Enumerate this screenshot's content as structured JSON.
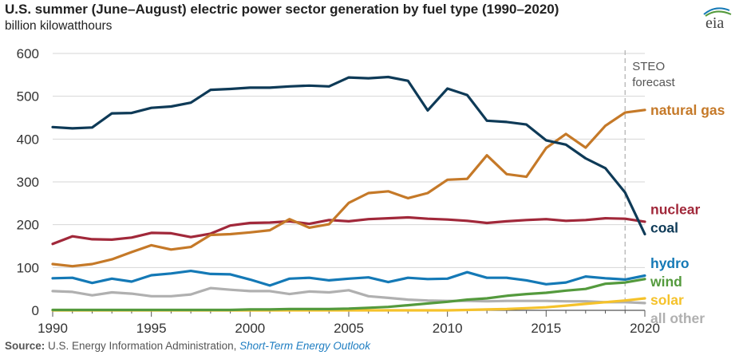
{
  "title": "U.S. summer (June–August) electric power sector generation by fuel type (1990–2020)",
  "subtitle": "billion kilowatthours",
  "logo_text": "eia",
  "source": {
    "label": "Source:",
    "text": " U.S. Energy Information Administration, ",
    "link": "Short-Term Energy Outlook"
  },
  "forecast_label": [
    "STEO",
    "forecast"
  ],
  "chart_data": {
    "type": "line",
    "xlim": [
      1990,
      2020
    ],
    "ylim": [
      0,
      600
    ],
    "x_ticks": [
      1990,
      1995,
      2000,
      2005,
      2010,
      2015,
      2020
    ],
    "y_ticks": [
      0,
      100,
      200,
      300,
      400,
      500,
      600
    ],
    "forecast_start": 2019,
    "grid": "horizontal",
    "x": [
      1990,
      1991,
      1992,
      1993,
      1994,
      1995,
      1996,
      1997,
      1998,
      1999,
      2000,
      2001,
      2002,
      2003,
      2004,
      2005,
      2006,
      2007,
      2008,
      2009,
      2010,
      2011,
      2012,
      2013,
      2014,
      2015,
      2016,
      2017,
      2018,
      2019,
      2020
    ],
    "series": [
      {
        "name": "coal",
        "color": "#0e3a57",
        "values": [
          428,
          425,
          427,
          460,
          461,
          473,
          476,
          485,
          515,
          517,
          520,
          520,
          523,
          525,
          523,
          544,
          542,
          545,
          536,
          467,
          518,
          503,
          443,
          440,
          434,
          397,
          387,
          355,
          332,
          275,
          178
        ]
      },
      {
        "name": "natural gas",
        "color": "#c57928",
        "values": [
          108,
          103,
          108,
          119,
          136,
          152,
          142,
          148,
          176,
          178,
          182,
          187,
          213,
          193,
          201,
          251,
          274,
          278,
          262,
          274,
          305,
          307,
          362,
          318,
          312,
          379,
          412,
          380,
          431,
          462,
          468
        ]
      },
      {
        "name": "nuclear",
        "color": "#a1283a",
        "values": [
          155,
          173,
          166,
          165,
          170,
          181,
          180,
          171,
          179,
          198,
          204,
          205,
          208,
          202,
          211,
          208,
          213,
          215,
          217,
          214,
          212,
          209,
          204,
          208,
          211,
          213,
          209,
          211,
          215,
          214,
          207
        ]
      },
      {
        "name": "hydro",
        "color": "#1479b6",
        "values": [
          75,
          76,
          64,
          74,
          67,
          82,
          86,
          92,
          85,
          84,
          72,
          58,
          74,
          76,
          70,
          74,
          77,
          66,
          76,
          73,
          74,
          89,
          76,
          76,
          70,
          61,
          65,
          79,
          75,
          72,
          81
        ]
      },
      {
        "name": "wind",
        "color": "#549a3d",
        "values": [
          1,
          1,
          1,
          1,
          1,
          1,
          1,
          1,
          1,
          1,
          2,
          2,
          3,
          3,
          3,
          4,
          6,
          8,
          12,
          16,
          20,
          25,
          28,
          34,
          38,
          41,
          46,
          50,
          62,
          65,
          73
        ]
      },
      {
        "name": "solar",
        "color": "#f5c22b",
        "values": [
          0,
          0,
          0,
          0,
          0,
          0,
          0,
          0,
          0,
          0,
          0,
          0,
          0,
          0,
          0,
          0,
          0,
          0,
          0,
          0,
          0,
          1,
          2,
          3,
          5,
          7,
          11,
          15,
          19,
          23,
          28
        ]
      },
      {
        "name": "all other",
        "color": "#b0b0b0",
        "values": [
          45,
          43,
          35,
          42,
          39,
          33,
          33,
          37,
          52,
          48,
          45,
          45,
          38,
          44,
          42,
          47,
          33,
          29,
          25,
          23,
          22,
          22,
          21,
          22,
          22,
          22,
          21,
          21,
          19,
          19,
          17
        ]
      }
    ]
  },
  "colors": {
    "grid": "#d6d6d6",
    "axis": "#555555",
    "forecast_line": "#b5b5b5",
    "title": "#222222",
    "link": "#1f7ec2"
  }
}
